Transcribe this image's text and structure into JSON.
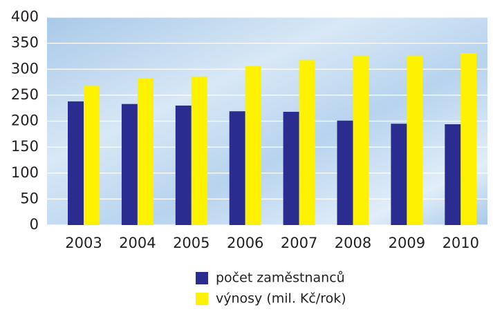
{
  "chart_data": {
    "type": "bar",
    "categories": [
      "2003",
      "2004",
      "2005",
      "2006",
      "2007",
      "2008",
      "2009",
      "2010"
    ],
    "series": [
      {
        "name": "počet zaměstnanců",
        "color": "#2b2c8f",
        "values": [
          238,
          233,
          230,
          219,
          218,
          201,
          195,
          194
        ]
      },
      {
        "name": "výnosy (mil. Kč/rok)",
        "color": "#fff200",
        "values": [
          268,
          283,
          286,
          306,
          318,
          326,
          326,
          331
        ]
      }
    ],
    "ylim": [
      0,
      400
    ],
    "yticks": [
      0,
      50,
      100,
      150,
      200,
      250,
      300,
      350,
      400
    ],
    "grid": true
  }
}
